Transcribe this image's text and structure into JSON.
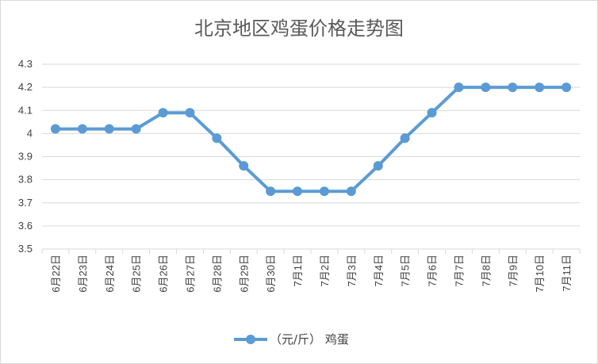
{
  "chart_data": {
    "type": "line",
    "title": "北京地区鸡蛋价格走势图",
    "xlabel": "",
    "ylabel": "",
    "categories": [
      "6月22日",
      "6月23日",
      "6月24日",
      "6月25日",
      "6月26日",
      "6月27日",
      "6月28日",
      "6月29日",
      "6月30日",
      "7月1日",
      "7月2日",
      "7月3日",
      "7月4日",
      "7月5日",
      "7月6日",
      "7月7日",
      "7月8日",
      "7月9日",
      "7月10日",
      "7月11日"
    ],
    "series": [
      {
        "name": "（元/斤） 鸡蛋",
        "values": [
          4.02,
          4.02,
          4.02,
          4.02,
          4.09,
          4.09,
          3.98,
          3.86,
          3.75,
          3.75,
          3.75,
          3.75,
          3.86,
          3.98,
          4.09,
          4.2,
          4.2,
          4.2,
          4.2,
          4.2
        ]
      }
    ],
    "ylim": [
      3.5,
      4.3
    ],
    "yticks": [
      "3.5",
      "3.6",
      "3.7",
      "3.8",
      "3.9",
      "4",
      "4.1",
      "4.2",
      "4.3"
    ],
    "grid": true,
    "legend_position": "bottom",
    "series_color": "#5b9bd5",
    "grid_color": "#d9d9d9"
  }
}
